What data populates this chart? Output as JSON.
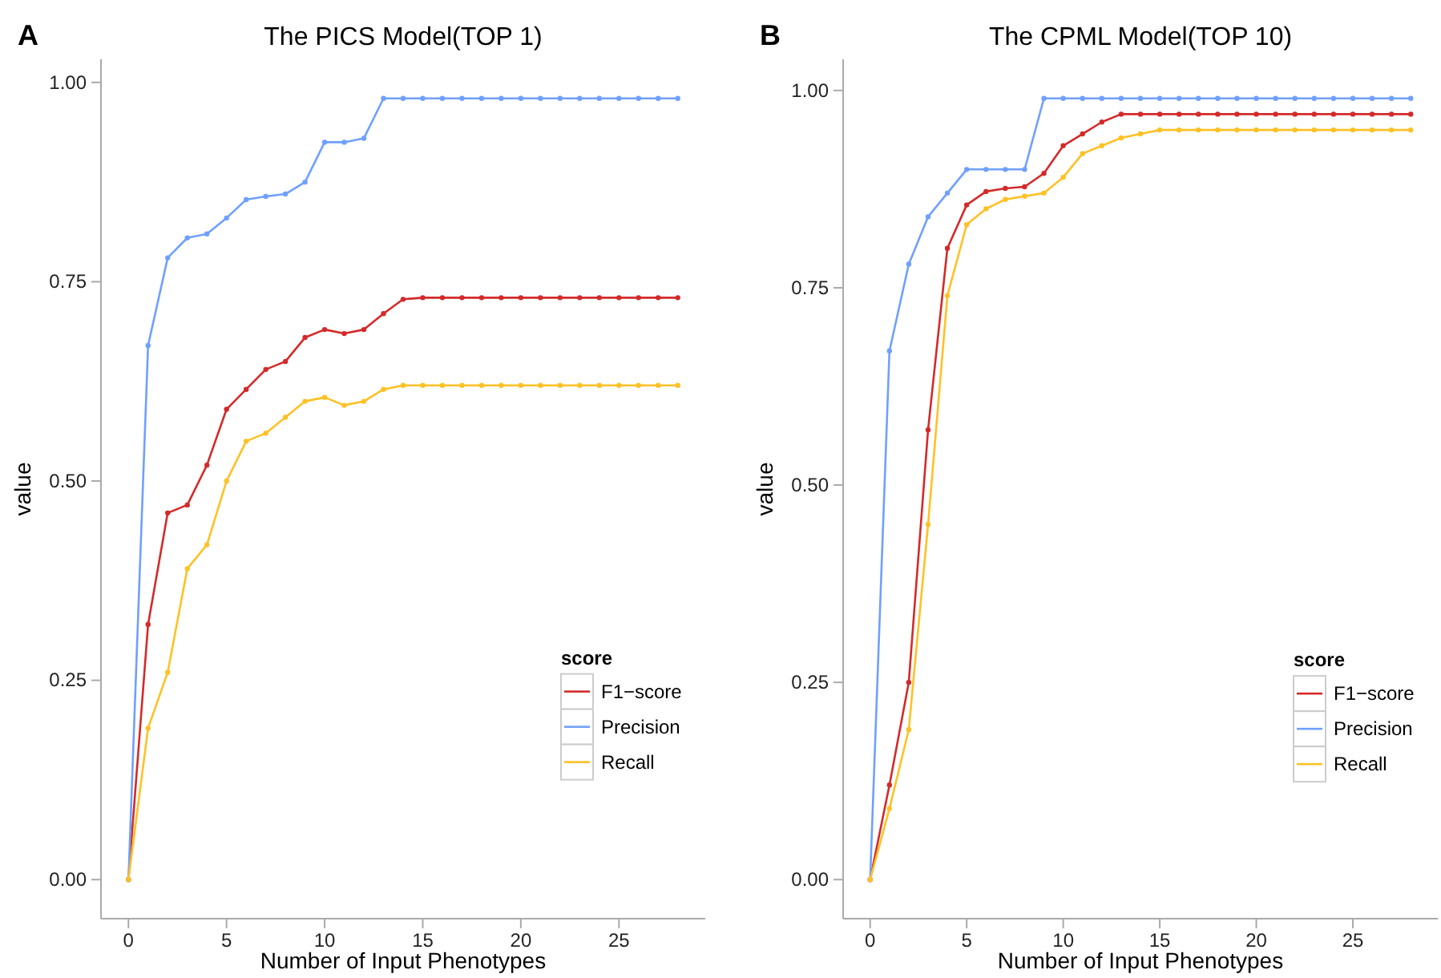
{
  "chart_data": [
    {
      "type": "line",
      "title": "The PICS Model(TOP 1)",
      "xlabel": "Number of Input Phenotypes",
      "ylabel": "value",
      "legend_title": "score",
      "legend": "bottom right",
      "marker": "circle",
      "grid": false,
      "annotations": [
        "A"
      ],
      "x": [
        0,
        1,
        2,
        3,
        4,
        5,
        6,
        7,
        8,
        9,
        10,
        11,
        12,
        13,
        14,
        15,
        16,
        17,
        18,
        19,
        20,
        21,
        22,
        23,
        24,
        25,
        26,
        27,
        28
      ],
      "xlim": [
        -1.4,
        29.4
      ],
      "xticks": [
        0,
        5,
        10,
        15,
        20,
        25
      ],
      "ylim": [
        -0.049,
        1.029
      ],
      "yticks": [
        {
          "value": 0,
          "label": "0.00"
        },
        {
          "value": 0.25,
          "label": "0.25"
        },
        {
          "value": 0.5,
          "label": "0.50"
        },
        {
          "value": 0.75,
          "label": "0.75"
        },
        {
          "value": 1,
          "label": "1.00"
        }
      ],
      "series": [
        {
          "name": "F1−score",
          "color": "#d42a2a",
          "values": [
            0,
            0.32,
            0.46,
            0.47,
            0.52,
            0.59,
            0.615,
            0.64,
            0.65,
            0.68,
            0.69,
            0.685,
            0.69,
            0.71,
            0.728,
            0.73,
            0.73,
            0.73,
            0.73,
            0.73,
            0.73,
            0.73,
            0.73,
            0.73,
            0.73,
            0.73,
            0.73,
            0.73,
            0.73
          ]
        },
        {
          "name": "Precision",
          "color": "#6fa0ff",
          "values": [
            0,
            0.67,
            0.78,
            0.805,
            0.81,
            0.83,
            0.853,
            0.857,
            0.86,
            0.875,
            0.925,
            0.925,
            0.93,
            0.98,
            0.98,
            0.98,
            0.98,
            0.98,
            0.98,
            0.98,
            0.98,
            0.98,
            0.98,
            0.98,
            0.98,
            0.98,
            0.98,
            0.98,
            0.98
          ]
        },
        {
          "name": "Recall",
          "color": "#ffc125",
          "values": [
            0,
            0.19,
            0.26,
            0.39,
            0.42,
            0.5,
            0.55,
            0.56,
            0.58,
            0.6,
            0.605,
            0.595,
            0.6,
            0.615,
            0.62,
            0.62,
            0.62,
            0.62,
            0.62,
            0.62,
            0.62,
            0.62,
            0.62,
            0.62,
            0.62,
            0.62,
            0.62,
            0.62,
            0.62
          ]
        }
      ]
    },
    {
      "type": "line",
      "title": "The CPML Model(TOP 10)",
      "xlabel": "Number of Input Phenotypes",
      "ylabel": "value",
      "legend_title": "score",
      "legend": "bottom right",
      "marker": "circle",
      "grid": false,
      "annotations": [
        "B"
      ],
      "x": [
        0,
        1,
        2,
        3,
        4,
        5,
        6,
        7,
        8,
        9,
        10,
        11,
        12,
        13,
        14,
        15,
        16,
        17,
        18,
        19,
        20,
        21,
        22,
        23,
        24,
        25,
        26,
        27,
        28
      ],
      "xlim": [
        -1.4,
        29.4
      ],
      "xticks": [
        0,
        5,
        10,
        15,
        20,
        25
      ],
      "ylim": [
        -0.0495,
        1.0395
      ],
      "yticks": [
        {
          "value": 0,
          "label": "0.00"
        },
        {
          "value": 0.25,
          "label": "0.25"
        },
        {
          "value": 0.5,
          "label": "0.50"
        },
        {
          "value": 0.75,
          "label": "0.75"
        },
        {
          "value": 1,
          "label": "1.00"
        }
      ],
      "series": [
        {
          "name": "F1−score",
          "color": "#d42a2a",
          "values": [
            0,
            0.12,
            0.25,
            0.57,
            0.8,
            0.855,
            0.872,
            0.876,
            0.878,
            0.895,
            0.93,
            0.945,
            0.96,
            0.97,
            0.97,
            0.97,
            0.97,
            0.97,
            0.97,
            0.97,
            0.97,
            0.97,
            0.97,
            0.97,
            0.97,
            0.97,
            0.97,
            0.97,
            0.97
          ]
        },
        {
          "name": "Precision",
          "color": "#6fa0ff",
          "values": [
            0,
            0.67,
            0.78,
            0.84,
            0.87,
            0.9,
            0.9,
            0.9,
            0.9,
            0.99,
            0.99,
            0.99,
            0.99,
            0.99,
            0.99,
            0.99,
            0.99,
            0.99,
            0.99,
            0.99,
            0.99,
            0.99,
            0.99,
            0.99,
            0.99,
            0.99,
            0.99,
            0.99,
            0.99
          ]
        },
        {
          "name": "Recall",
          "color": "#ffc125",
          "values": [
            0,
            0.09,
            0.19,
            0.45,
            0.74,
            0.83,
            0.85,
            0.862,
            0.866,
            0.87,
            0.89,
            0.92,
            0.93,
            0.94,
            0.945,
            0.95,
            0.95,
            0.95,
            0.95,
            0.95,
            0.95,
            0.95,
            0.95,
            0.95,
            0.95,
            0.95,
            0.95,
            0.95,
            0.95
          ]
        }
      ]
    }
  ]
}
